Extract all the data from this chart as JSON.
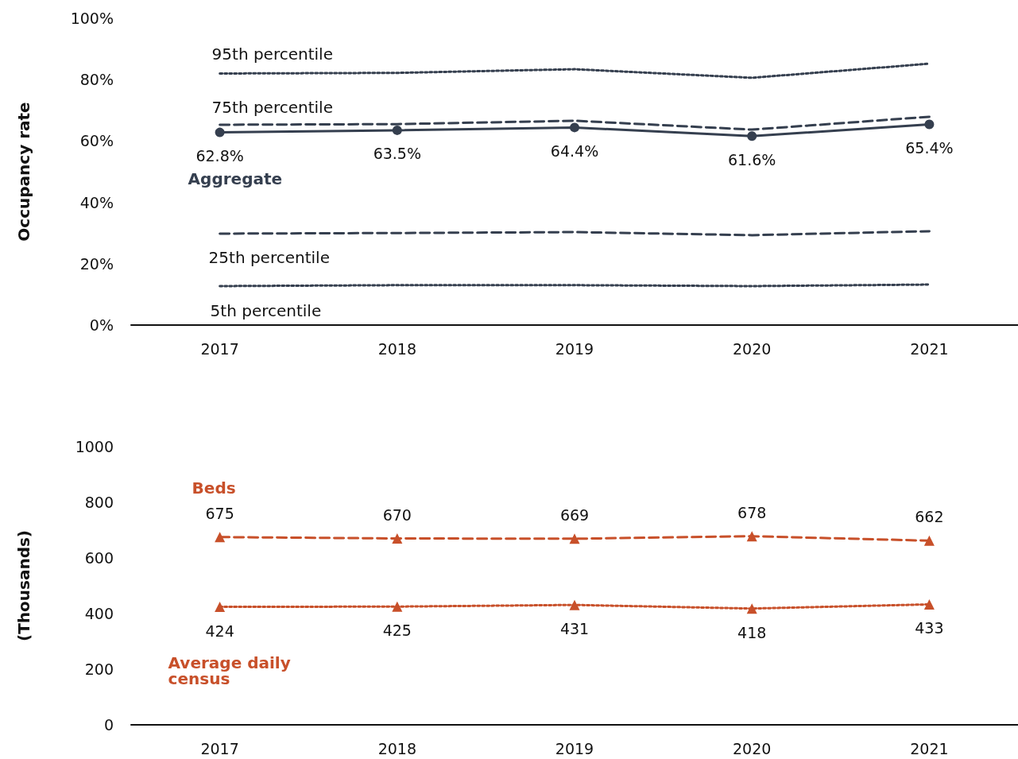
{
  "chart_data": [
    {
      "type": "line",
      "ylabel": "Occupancy rate",
      "categories": [
        "2017",
        "2018",
        "2019",
        "2020",
        "2021"
      ],
      "ylim": [
        0,
        100
      ],
      "yticks": [
        {
          "value": 0,
          "label": "0%"
        },
        {
          "value": 20,
          "label": "20%"
        },
        {
          "value": 40,
          "label": "40%"
        },
        {
          "value": 60,
          "label": "60%"
        },
        {
          "value": 80,
          "label": "80%"
        },
        {
          "value": 100,
          "label": "100%"
        }
      ],
      "grid": false,
      "series": [
        {
          "name": "95th percentile",
          "color": "#353f4f",
          "line_style": "dotted",
          "marker": "none",
          "values": [
            82,
            82.2,
            83.4,
            80.6,
            85.2
          ]
        },
        {
          "name": "75th percentile",
          "color": "#353f4f",
          "line_style": "dashed",
          "marker": "none",
          "values": [
            65.3,
            65.5,
            66.6,
            63.7,
            67.9
          ]
        },
        {
          "name": "Aggregate",
          "color": "#353f4f",
          "line_style": "solid",
          "marker": "circle",
          "values": [
            62.8,
            63.5,
            64.4,
            61.6,
            65.4
          ],
          "value_labels": [
            "62.8%",
            "63.5%",
            "64.4%",
            "61.6%",
            "65.4%"
          ]
        },
        {
          "name": "25th percentile",
          "color": "#353f4f",
          "line_style": "dashed",
          "marker": "none",
          "values": [
            29.8,
            30,
            30.3,
            29.3,
            30.6
          ]
        },
        {
          "name": "5th percentile",
          "color": "#353f4f",
          "line_style": "dotted",
          "marker": "none",
          "values": [
            12.7,
            13,
            13,
            12.7,
            13.2
          ]
        }
      ]
    },
    {
      "type": "line",
      "ylabel": "(Thousands)",
      "categories": [
        "2017",
        "2018",
        "2019",
        "2020",
        "2021"
      ],
      "ylim": [
        0,
        1000
      ],
      "yticks": [
        0,
        200,
        400,
        600,
        800,
        1000
      ],
      "grid": false,
      "data_labels": true,
      "series": [
        {
          "name": "Beds",
          "color": "#c8502a",
          "line_style": "dashed",
          "marker": "triangle",
          "values": [
            675,
            670,
            669,
            678,
            662
          ]
        },
        {
          "name": "Average daily census",
          "color": "#c8502a",
          "line_style": "dotted",
          "marker": "triangle",
          "values": [
            424,
            425,
            431,
            418,
            433
          ]
        }
      ]
    }
  ]
}
